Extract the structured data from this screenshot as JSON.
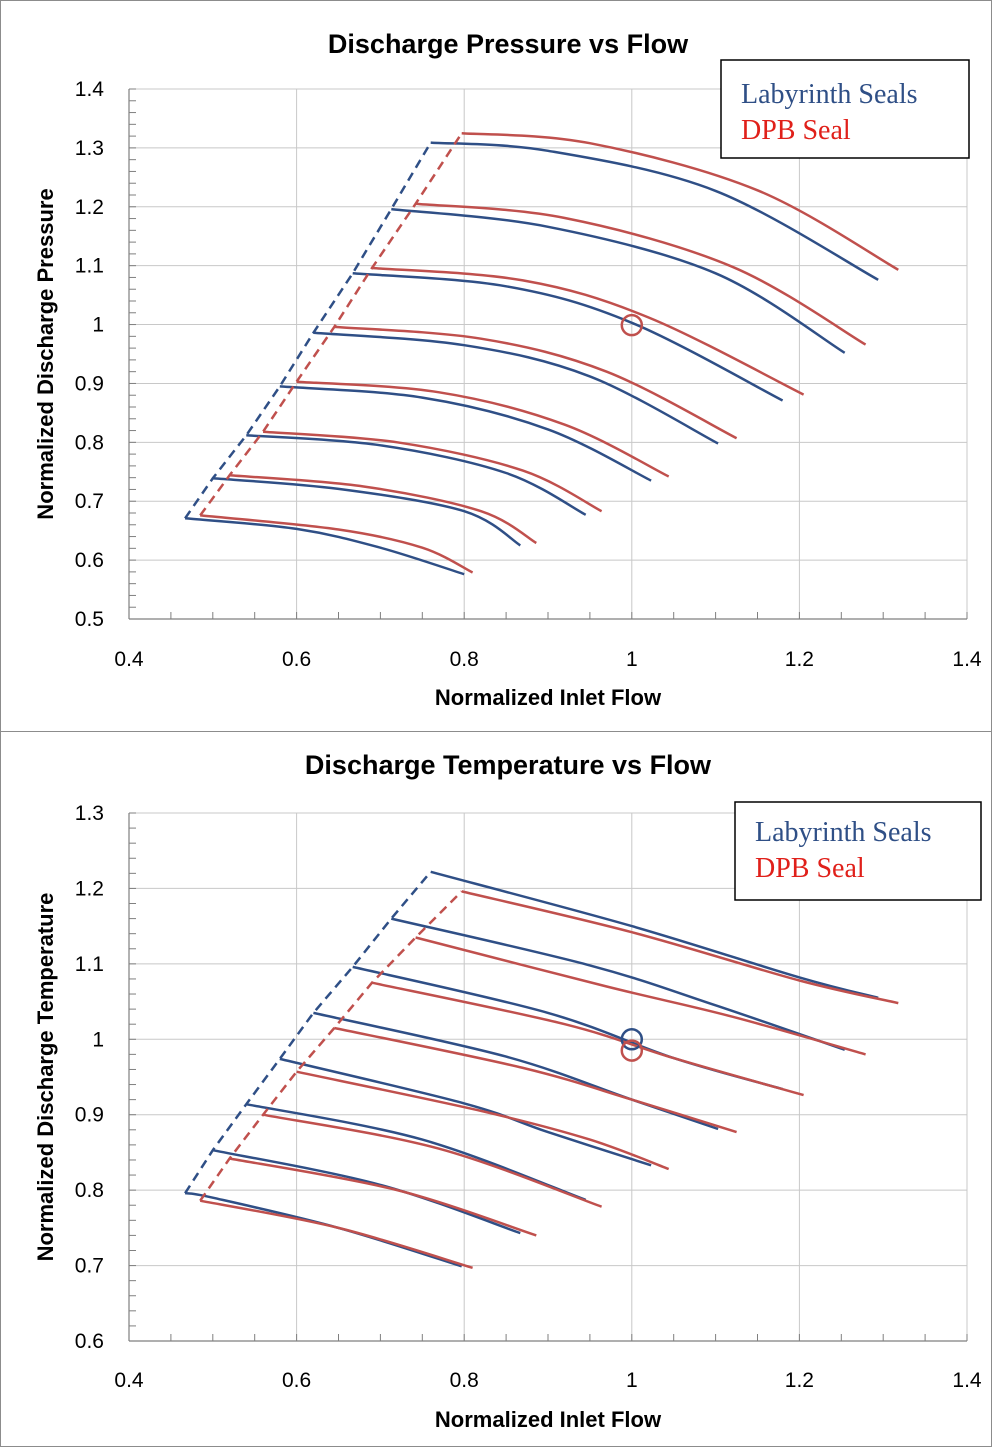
{
  "colors": {
    "labyrinth": "#2f4f86",
    "dpb": "#c0504d",
    "grid": "#c8c8c8",
    "axis": "#7f7f7f",
    "legend_dpb_text": "#e0201a"
  },
  "chart_data": [
    {
      "type": "line",
      "title": "Discharge Pressure vs Flow",
      "xlabel": "Normalized Inlet Flow",
      "ylabel": "Normalized Discharge Pressure",
      "xlim": [
        0.4,
        1.4
      ],
      "ylim": [
        0.5,
        1.4
      ],
      "xticks": [
        "0.4",
        "0.6",
        "0.8",
        "1",
        "1.2",
        "1.4"
      ],
      "yticks": [
        "0.5",
        "0.6",
        "0.7",
        "0.8",
        "0.9",
        "1",
        "1.1",
        "1.2",
        "1.3",
        "1.4"
      ],
      "grid": true,
      "legend": "top-right",
      "legend_entries": [
        "Labyrinth Seals",
        "DPB Seal"
      ],
      "series": [
        {
          "name": "Labyrinth Seals",
          "color_key": "labyrinth",
          "curves": [
            [
              [
                0.467,
                0.671
              ],
              [
                0.6,
                0.653
              ],
              [
                0.7,
                0.621
              ],
              [
                0.8,
                0.576
              ]
            ],
            [
              [
                0.5,
                0.739
              ],
              [
                0.65,
                0.721
              ],
              [
                0.8,
                0.683
              ],
              [
                0.867,
                0.625
              ]
            ],
            [
              [
                0.54,
                0.812
              ],
              [
                0.7,
                0.795
              ],
              [
                0.85,
                0.748
              ],
              [
                0.945,
                0.677
              ]
            ],
            [
              [
                0.58,
                0.895
              ],
              [
                0.75,
                0.876
              ],
              [
                0.9,
                0.822
              ],
              [
                1.023,
                0.735
              ]
            ],
            [
              [
                0.62,
                0.986
              ],
              [
                0.8,
                0.965
              ],
              [
                0.95,
                0.912
              ],
              [
                1.103,
                0.798
              ]
            ],
            [
              [
                0.667,
                1.087
              ],
              [
                0.85,
                1.065
              ],
              [
                1.0,
                1.003
              ],
              [
                1.18,
                0.871
              ]
            ],
            [
              [
                0.713,
                1.196
              ],
              [
                0.9,
                1.166
              ],
              [
                1.1,
                1.087
              ],
              [
                1.254,
                0.952
              ]
            ],
            [
              [
                0.76,
                1.309
              ],
              [
                0.9,
                1.295
              ],
              [
                1.1,
                1.227
              ],
              [
                1.294,
                1.076
              ]
            ]
          ],
          "dashed_envelope": [
            [
              0.467,
              0.671
            ],
            [
              0.5,
              0.739
            ],
            [
              0.54,
              0.812
            ],
            [
              0.58,
              0.895
            ],
            [
              0.62,
              0.986
            ],
            [
              0.667,
              1.087
            ],
            [
              0.713,
              1.196
            ],
            [
              0.76,
              1.309
            ]
          ]
        },
        {
          "name": "DPB Seal",
          "color_key": "dpb",
          "curves": [
            [
              [
                0.485,
                0.676
              ],
              [
                0.65,
                0.652
              ],
              [
                0.75,
                0.621
              ],
              [
                0.81,
                0.579
              ]
            ],
            [
              [
                0.52,
                0.744
              ],
              [
                0.68,
                0.725
              ],
              [
                0.82,
                0.683
              ],
              [
                0.886,
                0.629
              ]
            ],
            [
              [
                0.56,
                0.818
              ],
              [
                0.72,
                0.8
              ],
              [
                0.87,
                0.752
              ],
              [
                0.964,
                0.683
              ]
            ],
            [
              [
                0.6,
                0.903
              ],
              [
                0.77,
                0.885
              ],
              [
                0.92,
                0.83
              ],
              [
                1.044,
                0.742
              ]
            ],
            [
              [
                0.645,
                0.996
              ],
              [
                0.82,
                0.976
              ],
              [
                0.97,
                0.92
              ],
              [
                1.125,
                0.807
              ]
            ],
            [
              [
                0.69,
                1.096
              ],
              [
                0.87,
                1.075
              ],
              [
                1.02,
                1.012
              ],
              [
                1.205,
                0.881
              ]
            ],
            [
              [
                0.742,
                1.205
              ],
              [
                0.92,
                1.181
              ],
              [
                1.12,
                1.098
              ],
              [
                1.279,
                0.966
              ]
            ],
            [
              [
                0.797,
                1.325
              ],
              [
                0.95,
                1.308
              ],
              [
                1.15,
                1.228
              ],
              [
                1.318,
                1.093
              ]
            ]
          ],
          "dashed_envelope": [
            [
              0.485,
              0.676
            ],
            [
              0.52,
              0.744
            ],
            [
              0.56,
              0.818
            ],
            [
              0.6,
              0.903
            ],
            [
              0.645,
              0.996
            ],
            [
              0.69,
              1.096
            ],
            [
              0.742,
              1.205
            ],
            [
              0.797,
              1.325
            ]
          ]
        }
      ],
      "markers": [
        {
          "color_key": "dpb",
          "x": 1.0,
          "y": 0.999
        }
      ]
    },
    {
      "type": "line",
      "title": "Discharge Temperature vs Flow",
      "xlabel": "Normalized Inlet Flow",
      "ylabel": "Normalized Discharge Temperature",
      "xlim": [
        0.4,
        1.4
      ],
      "ylim": [
        0.6,
        1.3
      ],
      "xticks": [
        "0.4",
        "0.6",
        "0.8",
        "1",
        "1.2",
        "1.4"
      ],
      "yticks": [
        "0.6",
        "0.7",
        "0.8",
        "0.9",
        "1",
        "1.1",
        "1.2",
        "1.3"
      ],
      "grid": true,
      "legend": "top-right",
      "legend_entries": [
        "Labyrinth Seals",
        "DPB Seal"
      ],
      "series": [
        {
          "name": "Labyrinth Seals",
          "color_key": "labyrinth",
          "curves": [
            [
              [
                0.467,
                0.796
              ],
              [
                0.5,
                0.79
              ],
              [
                0.65,
                0.75
              ],
              [
                0.797,
                0.699
              ]
            ],
            [
              [
                0.5,
                0.853
              ],
              [
                0.7,
                0.807
              ],
              [
                0.867,
                0.743
              ]
            ],
            [
              [
                0.54,
                0.914
              ],
              [
                0.75,
                0.867
              ],
              [
                0.945,
                0.787
              ]
            ],
            [
              [
                0.58,
                0.974
              ],
              [
                0.8,
                0.915
              ],
              [
                0.9,
                0.877
              ],
              [
                1.023,
                0.833
              ]
            ],
            [
              [
                0.62,
                1.035
              ],
              [
                0.85,
                0.977
              ],
              [
                1.0,
                0.92
              ],
              [
                1.103,
                0.881
              ]
            ],
            [
              [
                0.667,
                1.096
              ],
              [
                0.9,
                1.035
              ],
              [
                1.05,
                0.975
              ],
              [
                1.18,
                0.934
              ]
            ],
            [
              [
                0.713,
                1.16
              ],
              [
                0.95,
                1.098
              ],
              [
                1.1,
                1.045
              ],
              [
                1.254,
                0.986
              ]
            ],
            [
              [
                0.76,
                1.222
              ],
              [
                1.0,
                1.15
              ],
              [
                1.2,
                1.082
              ],
              [
                1.294,
                1.055
              ]
            ]
          ],
          "dashed_envelope": [
            [
              0.467,
              0.796
            ],
            [
              0.5,
              0.853
            ],
            [
              0.54,
              0.914
            ],
            [
              0.58,
              0.974
            ],
            [
              0.62,
              1.035
            ],
            [
              0.667,
              1.096
            ],
            [
              0.713,
              1.16
            ],
            [
              0.76,
              1.222
            ]
          ]
        },
        {
          "name": "DPB Seal",
          "color_key": "dpb",
          "curves": [
            [
              [
                0.485,
                0.786
              ],
              [
                0.65,
                0.75
              ],
              [
                0.81,
                0.697
              ]
            ],
            [
              [
                0.52,
                0.842
              ],
              [
                0.72,
                0.8
              ],
              [
                0.886,
                0.74
              ]
            ],
            [
              [
                0.56,
                0.9
              ],
              [
                0.77,
                0.855
              ],
              [
                0.964,
                0.778
              ]
            ],
            [
              [
                0.6,
                0.957
              ],
              [
                0.82,
                0.905
              ],
              [
                0.95,
                0.867
              ],
              [
                1.044,
                0.828
              ]
            ],
            [
              [
                0.645,
                1.015
              ],
              [
                0.87,
                0.962
              ],
              [
                1.0,
                0.92
              ],
              [
                1.125,
                0.877
              ]
            ],
            [
              [
                0.69,
                1.075
              ],
              [
                0.92,
                1.02
              ],
              [
                1.05,
                0.975
              ],
              [
                1.205,
                0.926
              ]
            ],
            [
              [
                0.742,
                1.135
              ],
              [
                0.97,
                1.07
              ],
              [
                1.12,
                1.03
              ],
              [
                1.279,
                0.98
              ]
            ],
            [
              [
                0.797,
                1.196
              ],
              [
                1.0,
                1.142
              ],
              [
                1.2,
                1.078
              ],
              [
                1.318,
                1.048
              ]
            ]
          ],
          "dashed_envelope": [
            [
              0.485,
              0.786
            ],
            [
              0.52,
              0.842
            ],
            [
              0.56,
              0.9
            ],
            [
              0.6,
              0.957
            ],
            [
              0.645,
              1.015
            ],
            [
              0.69,
              1.075
            ],
            [
              0.742,
              1.135
            ],
            [
              0.797,
              1.196
            ]
          ]
        }
      ],
      "markers": [
        {
          "color_key": "labyrinth",
          "x": 1.0,
          "y": 1.0
        },
        {
          "color_key": "dpb",
          "x": 1.0,
          "y": 0.985
        }
      ]
    }
  ]
}
